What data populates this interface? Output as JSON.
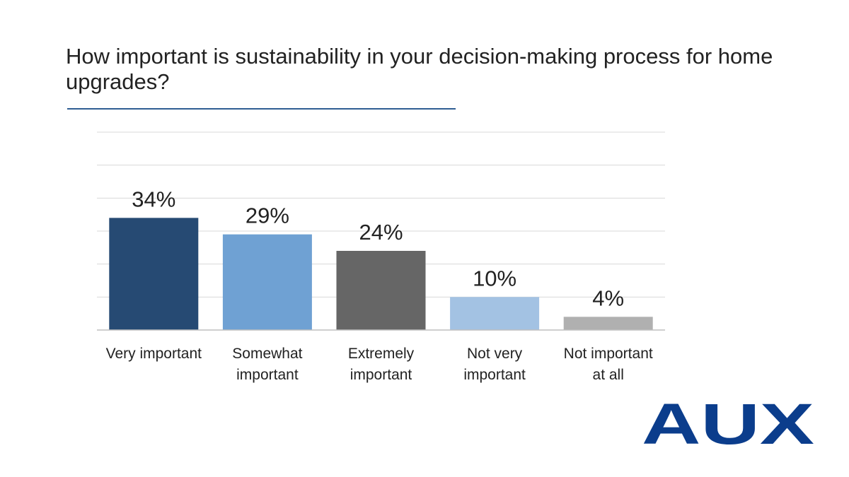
{
  "chart_data": {
    "type": "bar",
    "title": "How important is sustainability in your decision-making process for home upgrades?",
    "categories": [
      [
        "Very important"
      ],
      [
        "Somewhat",
        "important"
      ],
      [
        "Extremely",
        "important"
      ],
      [
        "Not very",
        "important"
      ],
      [
        "Not important",
        "at all"
      ]
    ],
    "values": [
      34,
      29,
      24,
      10,
      4
    ],
    "data_labels": [
      "34%",
      "29%",
      "24%",
      "10%",
      "4%"
    ],
    "colors": [
      "#264a73",
      "#6fa1d3",
      "#666666",
      "#a3c2e3",
      "#b0b0b0"
    ],
    "ylim": [
      0,
      60
    ],
    "grid": true,
    "gridline_step": 10,
    "y_tick_labels_shown": false,
    "legend": "none"
  },
  "logo": {
    "text": "AUX",
    "color": "#0b3d8c"
  }
}
